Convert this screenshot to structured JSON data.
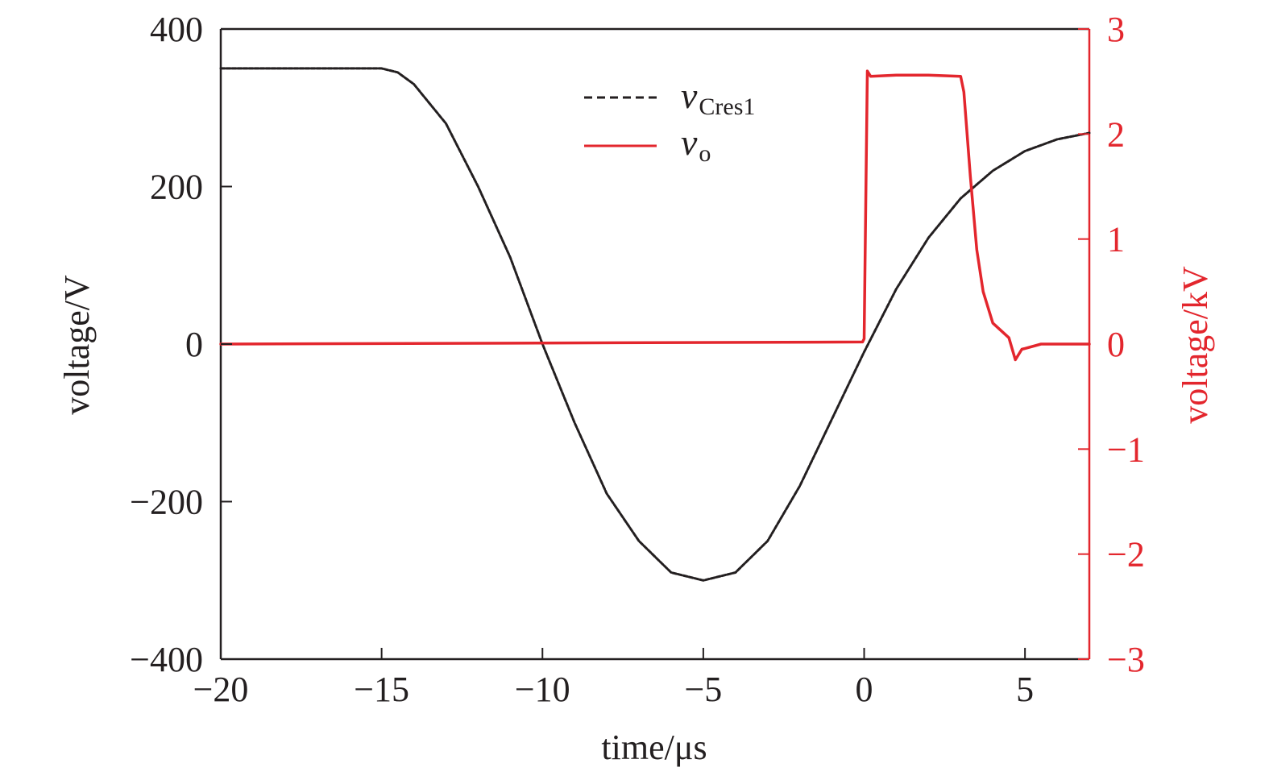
{
  "chart_data": {
    "type": "line",
    "title": "",
    "xlabel": "time/μs",
    "ylabel_left": "voltage/V",
    "ylabel_right": "voltage/kV",
    "xlim": [
      -20,
      7
    ],
    "ylim_left": [
      -400,
      400
    ],
    "ylim_right": [
      -3,
      3
    ],
    "x_ticks": [
      -20,
      -15,
      -10,
      -5,
      0,
      5
    ],
    "x_tick_labels": [
      "−20",
      "−15",
      "−10",
      "−5",
      "0",
      "5"
    ],
    "y_left_ticks": [
      -400,
      -200,
      0,
      200,
      400
    ],
    "y_left_tick_labels": [
      "−400",
      "−200",
      "0",
      "200",
      "400"
    ],
    "y_right_ticks": [
      -3,
      -2,
      -1,
      0,
      1,
      2,
      3
    ],
    "y_right_tick_labels": [
      "−3",
      "−2",
      "−1",
      "0",
      "1",
      "2",
      "3"
    ],
    "grid": false,
    "legend_position": "top-center",
    "colors": {
      "left": "#231f20",
      "right": "#e3262d"
    },
    "series": [
      {
        "name": "v",
        "subscript": "Cres1",
        "axis": "left",
        "style": "dashed",
        "color": "#231f20",
        "points": [
          [
            -20,
            350
          ],
          [
            -17,
            350
          ],
          [
            -15,
            350
          ],
          [
            -14.5,
            345
          ],
          [
            -14,
            330
          ],
          [
            -13,
            280
          ],
          [
            -12,
            200
          ],
          [
            -11,
            110
          ],
          [
            -10,
            0
          ],
          [
            -9,
            -100
          ],
          [
            -8,
            -190
          ],
          [
            -7,
            -250
          ],
          [
            -6,
            -290
          ],
          [
            -5,
            -300
          ],
          [
            -4,
            -290
          ],
          [
            -3,
            -250
          ],
          [
            -2,
            -180
          ],
          [
            -1,
            -95
          ],
          [
            0,
            -10
          ],
          [
            1,
            70
          ],
          [
            2,
            135
          ],
          [
            3,
            185
          ],
          [
            4,
            220
          ],
          [
            5,
            245
          ],
          [
            6,
            260
          ],
          [
            7,
            268
          ]
        ]
      },
      {
        "name": "v",
        "subscript": "o",
        "axis": "right",
        "style": "solid",
        "color": "#e3262d",
        "points": [
          [
            -20,
            0
          ],
          [
            -0.05,
            0.02
          ],
          [
            0,
            0.05
          ],
          [
            0.1,
            2.6
          ],
          [
            0.2,
            2.55
          ],
          [
            1,
            2.56
          ],
          [
            2,
            2.56
          ],
          [
            3,
            2.55
          ],
          [
            3.1,
            2.4
          ],
          [
            3.3,
            1.6
          ],
          [
            3.5,
            0.9
          ],
          [
            3.7,
            0.5
          ],
          [
            4,
            0.2
          ],
          [
            4.5,
            0.06
          ],
          [
            4.7,
            -0.15
          ],
          [
            4.9,
            -0.05
          ],
          [
            5.5,
            0
          ],
          [
            7,
            0
          ]
        ]
      }
    ]
  }
}
